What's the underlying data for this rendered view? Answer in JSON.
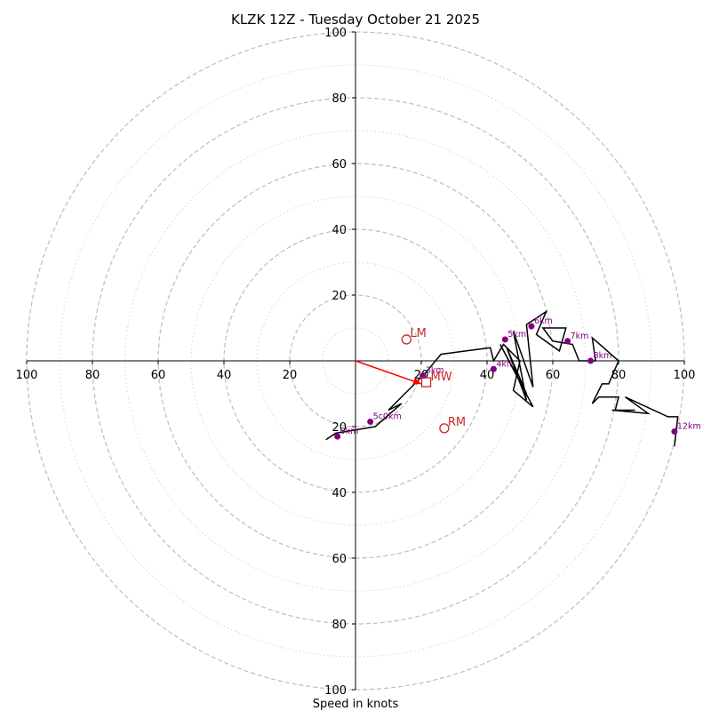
{
  "chart_data": {
    "type": "hodograph",
    "title": "KLZK 12Z - Tuesday October 21 2025",
    "xlabel": "Speed in knots",
    "axis_range": [
      -100,
      100
    ],
    "ring_major": [
      20,
      40,
      60,
      80,
      100
    ],
    "ring_minor": [
      10,
      30,
      50,
      70,
      90
    ],
    "tick_labels_horizontal": [
      {
        "value": -100,
        "label": "100"
      },
      {
        "value": -80,
        "label": "80"
      },
      {
        "value": -60,
        "label": "60"
      },
      {
        "value": -40,
        "label": "40"
      },
      {
        "value": -20,
        "label": "20"
      },
      {
        "value": 20,
        "label": "20"
      },
      {
        "value": 40,
        "label": "40"
      },
      {
        "value": 60,
        "label": "60"
      },
      {
        "value": 80,
        "label": "80"
      },
      {
        "value": 100,
        "label": "100"
      }
    ],
    "tick_labels_vertical": [
      {
        "value": 100,
        "label": "100"
      },
      {
        "value": 80,
        "label": "80"
      },
      {
        "value": 60,
        "label": "60"
      },
      {
        "value": 40,
        "label": "40"
      },
      {
        "value": 20,
        "label": "20"
      },
      {
        "value": -20,
        "label": "20"
      },
      {
        "value": -40,
        "label": "40"
      },
      {
        "value": -60,
        "label": "60"
      },
      {
        "value": -80,
        "label": "80"
      },
      {
        "value": -100,
        "label": "100"
      }
    ],
    "trace": {
      "name": "hodograph",
      "color": "#000000",
      "u": [
        -9,
        -6,
        6,
        14,
        10,
        18,
        21,
        26,
        41,
        42,
        45,
        50,
        48,
        54,
        44,
        52,
        46,
        52,
        48,
        54,
        52,
        58,
        55,
        62,
        64,
        57,
        60,
        66,
        68,
        73,
        72,
        80,
        77,
        75,
        72,
        74,
        80,
        79,
        85,
        78,
        89,
        82,
        95,
        98,
        97
      ],
      "v": [
        -24,
        -22,
        -20,
        -13,
        -15,
        -7,
        -4,
        2,
        4,
        0,
        5,
        0,
        -9,
        -14,
        5,
        -10,
        4,
        -12,
        9,
        -8,
        11,
        15,
        8,
        3,
        10,
        10,
        6,
        5,
        0,
        0,
        7,
        0,
        -7,
        -7,
        -13,
        -11,
        -11,
        -15,
        -15,
        -15,
        -16,
        -11,
        -17,
        -17,
        -26
      ]
    },
    "height_markers": [
      {
        "label": "0km",
        "u": -5.5,
        "v": -23
      },
      {
        "label": "5c0km",
        "u": 4.5,
        "v": -18.5
      },
      {
        "label": "3km",
        "u": 20.5,
        "v": -4.5
      },
      {
        "label": "4km",
        "u": 42,
        "v": -2.5
      },
      {
        "label": "5km",
        "u": 45.5,
        "v": 6.5
      },
      {
        "label": "6km",
        "u": 53.5,
        "v": 10.5
      },
      {
        "label": "7km",
        "u": 64.5,
        "v": 6
      },
      {
        "label": "8km",
        "u": 71.5,
        "v": 0
      },
      {
        "label": "12km",
        "u": 97,
        "v": -21.5
      }
    ],
    "storm_motion": [
      {
        "label": "LM",
        "u": 15.5,
        "v": 6.5
      },
      {
        "label": "RM",
        "u": 27,
        "v": -20.5
      }
    ],
    "mean_wind": {
      "label": "MW",
      "u": 21.5,
      "v": -6.5
    },
    "shear_vector": {
      "u": 20,
      "v": -7,
      "color": "#ff0000"
    },
    "colors": {
      "grid": "#bdbdbd",
      "grid_minor": "#d3d3d3",
      "marker": "#800080",
      "storm": "#c62828",
      "axis": "#000000"
    }
  }
}
